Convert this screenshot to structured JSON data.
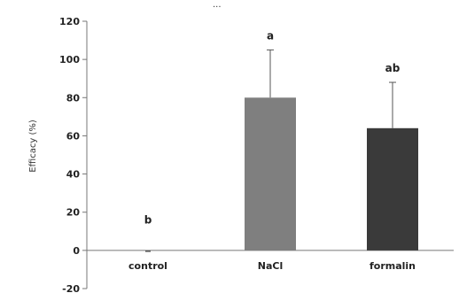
{
  "header_fragment": "...",
  "chart_data": {
    "type": "bar",
    "categories": [
      "control",
      "NaCl",
      "formalin"
    ],
    "values": [
      0,
      80,
      64
    ],
    "error_upper": [
      0,
      25,
      24
    ],
    "significance_letters": [
      "b",
      "a",
      "ab"
    ],
    "ylabel": "Efficacy (%)",
    "xlabel": "",
    "ylim": [
      -20,
      120
    ],
    "yticks": [
      -20,
      0,
      20,
      40,
      60,
      80,
      100,
      120
    ],
    "grid": false,
    "legend": "none",
    "colors": [
      "#7a7a7a",
      "#7f7f7f",
      "#3a3a3a"
    ],
    "error_bar_color": "#555555"
  }
}
